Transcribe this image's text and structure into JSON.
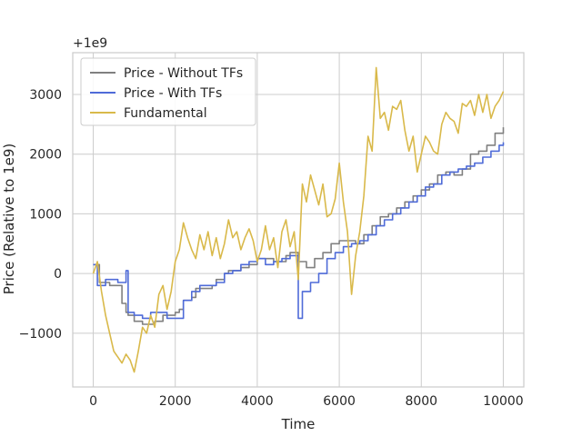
{
  "chart_data": {
    "type": "line",
    "title": "",
    "xlabel": "Time",
    "ylabel": "Price (Relative to 1e9)",
    "y_offset_label": "+1e9",
    "xlim": [
      -500,
      10500
    ],
    "ylim": [
      -1900,
      3700
    ],
    "xticks": [
      0,
      2000,
      4000,
      6000,
      8000,
      10000
    ],
    "yticks": [
      -1000,
      0,
      1000,
      2000,
      3000
    ],
    "xtick_labels": [
      "0",
      "2000",
      "4000",
      "6000",
      "8000",
      "10000"
    ],
    "ytick_labels": [
      "−1000",
      "0",
      "1000",
      "2000",
      "3000"
    ],
    "grid": true,
    "legend_position": "top-left",
    "series": [
      {
        "name": "Price - Without TFs",
        "color": "#808080",
        "style": "step",
        "x": [
          0,
          150,
          400,
          700,
          800,
          850,
          1000,
          1200,
          1500,
          1700,
          2000,
          2100,
          2200,
          2400,
          2500,
          2700,
          2900,
          3000,
          3200,
          3300,
          3600,
          3800,
          4000,
          4200,
          4400,
          4500,
          4700,
          4800,
          5000,
          5200,
          5400,
          5600,
          5800,
          6000,
          6200,
          6400,
          6600,
          6800,
          7000,
          7200,
          7400,
          7600,
          7800,
          8000,
          8200,
          8400,
          8600,
          8800,
          9000,
          9200,
          9400,
          9600,
          9800,
          10000
        ],
        "values": [
          150,
          -150,
          -200,
          -500,
          -650,
          -700,
          -800,
          -850,
          -800,
          -700,
          -650,
          -600,
          -450,
          -400,
          -250,
          -250,
          -200,
          -100,
          0,
          50,
          100,
          150,
          250,
          250,
          200,
          200,
          300,
          350,
          200,
          100,
          250,
          350,
          500,
          550,
          550,
          500,
          650,
          800,
          950,
          1000,
          1100,
          1200,
          1300,
          1400,
          1500,
          1650,
          1700,
          1650,
          1750,
          2000,
          2050,
          2150,
          2350,
          2450
        ]
      },
      {
        "name": "Price - With TFs",
        "color": "#4f6bd8",
        "style": "step",
        "x": [
          0,
          100,
          300,
          600,
          800,
          850,
          1000,
          1200,
          1400,
          1600,
          1800,
          2000,
          2200,
          2400,
          2600,
          2800,
          3000,
          3200,
          3400,
          3600,
          3800,
          4000,
          4200,
          4400,
          4600,
          4800,
          5000,
          5100,
          5300,
          5500,
          5700,
          5900,
          6100,
          6300,
          6500,
          6700,
          6900,
          7100,
          7300,
          7500,
          7700,
          7900,
          8100,
          8300,
          8500,
          8700,
          8900,
          9100,
          9300,
          9500,
          9700,
          9900,
          10000
        ],
        "values": [
          150,
          -200,
          -100,
          -150,
          50,
          -650,
          -700,
          -750,
          -650,
          -650,
          -750,
          -750,
          -450,
          -300,
          -200,
          -200,
          -150,
          0,
          50,
          150,
          200,
          250,
          150,
          200,
          250,
          300,
          -750,
          -300,
          -150,
          0,
          250,
          350,
          450,
          500,
          550,
          650,
          800,
          900,
          1000,
          1100,
          1200,
          1300,
          1450,
          1500,
          1650,
          1700,
          1750,
          1800,
          1850,
          1950,
          2050,
          2150,
          2200
        ]
      },
      {
        "name": "Fundamental",
        "color": "#d9b94a",
        "style": "line",
        "x": [
          0,
          100,
          200,
          300,
          400,
          500,
          600,
          700,
          800,
          900,
          1000,
          1100,
          1200,
          1300,
          1400,
          1500,
          1600,
          1700,
          1800,
          1900,
          2000,
          2100,
          2200,
          2300,
          2400,
          2500,
          2600,
          2700,
          2800,
          2900,
          3000,
          3100,
          3200,
          3300,
          3400,
          3500,
          3600,
          3700,
          3800,
          3900,
          4000,
          4100,
          4200,
          4300,
          4400,
          4500,
          4600,
          4700,
          4800,
          4900,
          5000,
          5100,
          5200,
          5300,
          5400,
          5500,
          5600,
          5700,
          5800,
          5900,
          6000,
          6100,
          6200,
          6300,
          6400,
          6500,
          6600,
          6700,
          6800,
          6900,
          7000,
          7100,
          7200,
          7300,
          7400,
          7500,
          7600,
          7700,
          7800,
          7900,
          8000,
          8100,
          8200,
          8300,
          8400,
          8500,
          8600,
          8700,
          8800,
          8900,
          9000,
          9100,
          9200,
          9300,
          9400,
          9500,
          9600,
          9700,
          9800,
          9900,
          10000
        ],
        "values": [
          0,
          200,
          -300,
          -700,
          -1000,
          -1300,
          -1400,
          -1500,
          -1350,
          -1450,
          -1650,
          -1300,
          -900,
          -1000,
          -700,
          -900,
          -350,
          -200,
          -600,
          -300,
          200,
          400,
          850,
          600,
          400,
          250,
          650,
          400,
          700,
          300,
          600,
          250,
          500,
          900,
          600,
          700,
          400,
          600,
          750,
          550,
          200,
          400,
          800,
          400,
          600,
          100,
          700,
          900,
          450,
          700,
          -100,
          1500,
          1200,
          1650,
          1400,
          1150,
          1500,
          950,
          1000,
          1250,
          1850,
          1200,
          700,
          -350,
          300,
          700,
          1300,
          2300,
          2050,
          3450,
          2600,
          2700,
          2400,
          2800,
          2750,
          2900,
          2400,
          2050,
          2300,
          1700,
          2000,
          2300,
          2200,
          2050,
          2000,
          2500,
          2700,
          2600,
          2550,
          2350,
          2850,
          2800,
          2900,
          2650,
          3000,
          2700,
          3000,
          2600,
          2800,
          2900,
          3050
        ]
      }
    ]
  }
}
